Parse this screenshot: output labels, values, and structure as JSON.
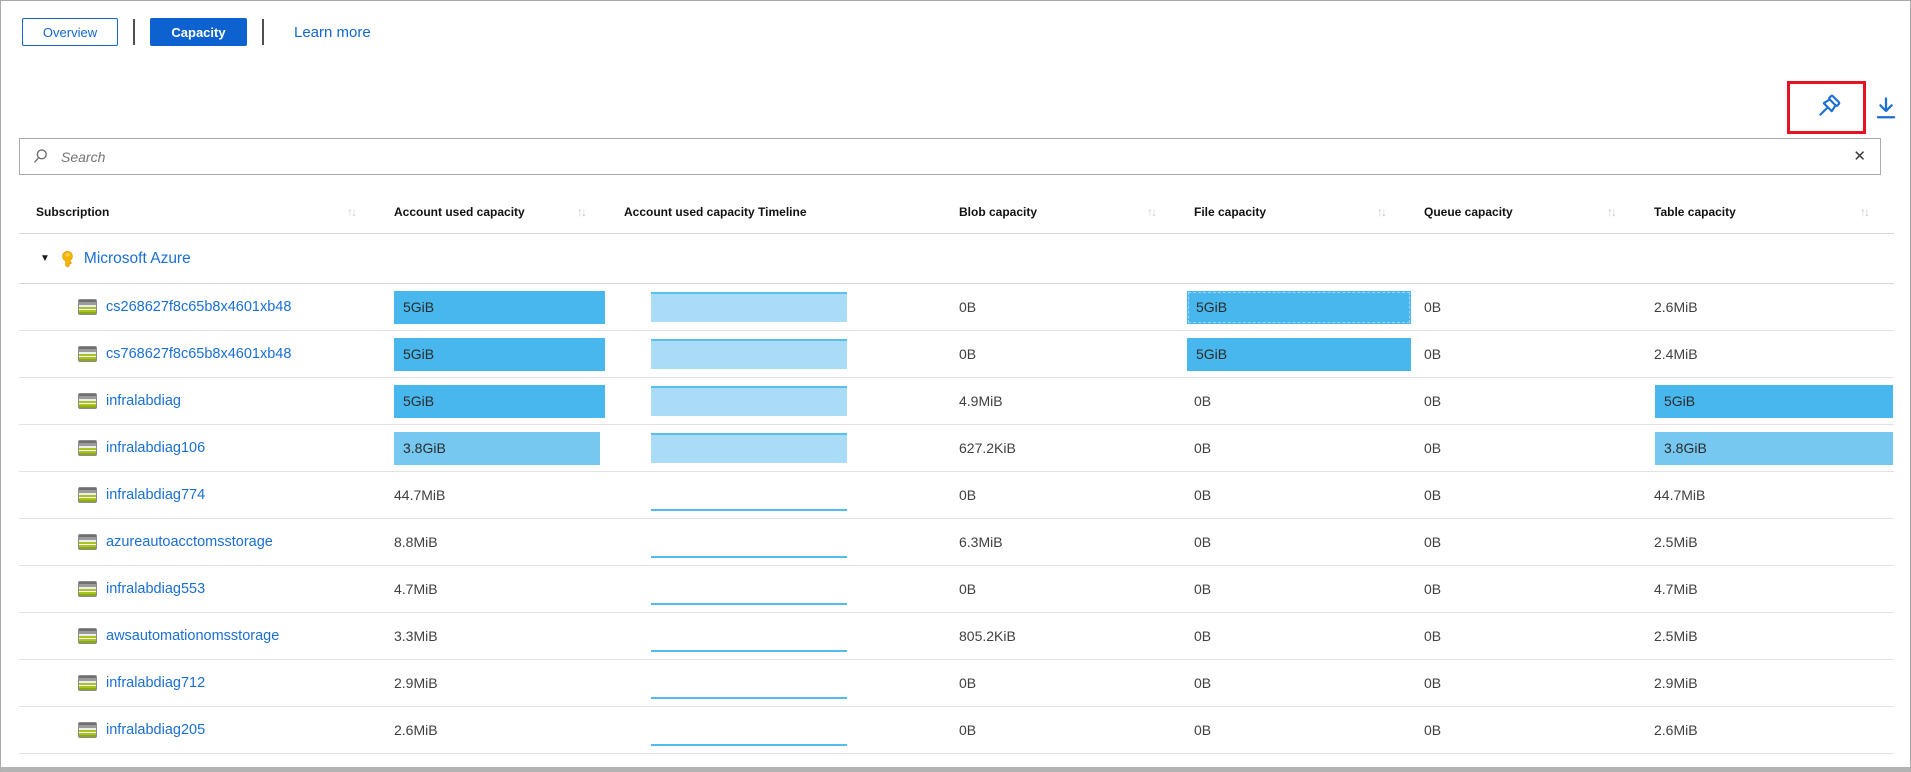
{
  "view_tabs": {
    "overview_label": "Overview",
    "capacity_label": "Capacity",
    "learn_more_label": "Learn more",
    "selected": "Capacity"
  },
  "toolbar": {
    "pin_icon": "pushpin",
    "download_icon": "download-arrow",
    "pin_highlighted": true,
    "highlight_color": "#e81123"
  },
  "search": {
    "placeholder": "Search",
    "value": "",
    "clear_icon": "✕"
  },
  "icons": {
    "sort": "↑↓",
    "expand": "▼",
    "group": "key",
    "row": "storage-account"
  },
  "colors": {
    "accent_blue": "#1267d2",
    "button_blue": "#0d62d0",
    "link_blue": "#1a6fd4",
    "bar_dark": "#48b7ee",
    "bar_light": "#76c8f1",
    "timeline_fill": "#aadcf7",
    "timeline_edge": "#59bff0",
    "key_gold": "#f7b500"
  },
  "table": {
    "columns": [
      {
        "label": "Subscription",
        "sortable": true
      },
      {
        "label": "Account used capacity",
        "sortable": true
      },
      {
        "label": "Account used capacity Timeline",
        "sortable": false
      },
      {
        "label": "Blob capacity",
        "sortable": true
      },
      {
        "label": "File capacity",
        "sortable": true
      },
      {
        "label": "Queue capacity",
        "sortable": true
      },
      {
        "label": "Table capacity",
        "sortable": true
      }
    ],
    "group": {
      "label": "Microsoft Azure",
      "expanded": true
    },
    "rows": [
      {
        "name": "cs268627f8c65b8x4601xb48",
        "account": "5GiB",
        "account_bar": "dark",
        "timeline": "area",
        "blob": "0B",
        "file": "5GiB",
        "file_bar": "dark",
        "file_focus": true,
        "queue": "0B",
        "table_cap": "2.6MiB",
        "table_bar": null
      },
      {
        "name": "cs768627f8c65b8x4601xb48",
        "account": "5GiB",
        "account_bar": "dark",
        "timeline": "area",
        "blob": "0B",
        "file": "5GiB",
        "file_bar": "dark",
        "file_focus": false,
        "queue": "0B",
        "table_cap": "2.4MiB",
        "table_bar": null
      },
      {
        "name": "infralabdiag",
        "account": "5GiB",
        "account_bar": "dark",
        "timeline": "area",
        "blob": "4.9MiB",
        "file": "0B",
        "file_bar": null,
        "file_focus": false,
        "queue": "0B",
        "table_cap": "5GiB",
        "table_bar": "dark"
      },
      {
        "name": "infralabdiag106",
        "account": "3.8GiB",
        "account_bar": "light",
        "timeline": "area",
        "blob": "627.2KiB",
        "file": "0B",
        "file_bar": null,
        "file_focus": false,
        "queue": "0B",
        "table_cap": "3.8GiB",
        "table_bar": "light"
      },
      {
        "name": "infralabdiag774",
        "account": "44.7MiB",
        "account_bar": null,
        "timeline": "line",
        "blob": "0B",
        "file": "0B",
        "file_bar": null,
        "file_focus": false,
        "queue": "0B",
        "table_cap": "44.7MiB",
        "table_bar": null
      },
      {
        "name": "azureautoacctomsstorage",
        "account": "8.8MiB",
        "account_bar": null,
        "timeline": "line",
        "blob": "6.3MiB",
        "file": "0B",
        "file_bar": null,
        "file_focus": false,
        "queue": "0B",
        "table_cap": "2.5MiB",
        "table_bar": null
      },
      {
        "name": "infralabdiag553",
        "account": "4.7MiB",
        "account_bar": null,
        "timeline": "line",
        "blob": "0B",
        "file": "0B",
        "file_bar": null,
        "file_focus": false,
        "queue": "0B",
        "table_cap": "4.7MiB",
        "table_bar": null
      },
      {
        "name": "awsautomationomsstorage",
        "account": "3.3MiB",
        "account_bar": null,
        "timeline": "line",
        "blob": "805.2KiB",
        "file": "0B",
        "file_bar": null,
        "file_focus": false,
        "queue": "0B",
        "table_cap": "2.5MiB",
        "table_bar": null
      },
      {
        "name": "infralabdiag712",
        "account": "2.9MiB",
        "account_bar": null,
        "timeline": "line",
        "blob": "0B",
        "file": "0B",
        "file_bar": null,
        "file_focus": false,
        "queue": "0B",
        "table_cap": "2.9MiB",
        "table_bar": null
      },
      {
        "name": "infralabdiag205",
        "account": "2.6MiB",
        "account_bar": null,
        "timeline": "line",
        "blob": "0B",
        "file": "0B",
        "file_bar": null,
        "file_focus": false,
        "queue": "0B",
        "table_cap": "2.6MiB",
        "table_bar": null
      }
    ]
  }
}
